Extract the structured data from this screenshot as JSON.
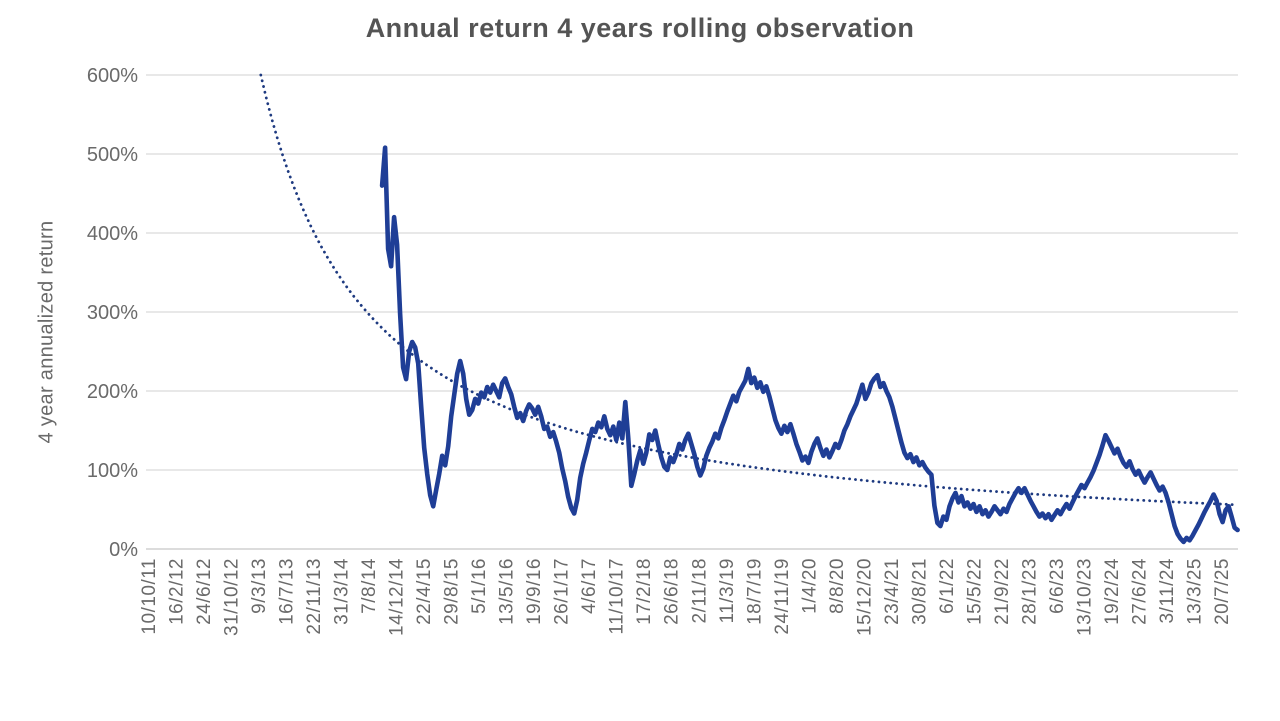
{
  "page": {
    "background": "#ffffff"
  },
  "chart_data": {
    "type": "line",
    "title": "Annual return 4 years rolling observation",
    "ylabel": "4 year annualized return",
    "xlabel": "",
    "grid": true,
    "legend_position": "none",
    "y_range_pct": [
      0,
      600
    ],
    "y_ticks": [
      "0%",
      "100%",
      "200%",
      "300%",
      "400%",
      "500%",
      "600%"
    ],
    "x_tick_labels": [
      "10/10/11",
      "16/2/12",
      "24/6/12",
      "31/10/12",
      "9/3/13",
      "16/7/13",
      "22/11/13",
      "31/3/14",
      "7/8/14",
      "14/12/14",
      "22/4/15",
      "29/8/15",
      "5/1/16",
      "13/5/16",
      "19/9/16",
      "26/1/17",
      "4/6/17",
      "11/10/17",
      "17/2/18",
      "26/6/18",
      "2/11/18",
      "11/3/19",
      "18/7/19",
      "24/11/19",
      "1/4/20",
      "8/8/20",
      "15/12/20",
      "23/4/21",
      "30/8/21",
      "6/1/22",
      "15/5/22",
      "21/9/22",
      "28/1/23",
      "6/6/23",
      "13/10/23",
      "19/2/24",
      "27/6/24",
      "3/11/24",
      "13/3/25",
      "20/7/25"
    ],
    "colors": {
      "series": "#1F3E96",
      "trendline": "#1E3A80",
      "gridline": "#D9D9D9",
      "axis_line": "#C6C6C6",
      "title_text": "#545454",
      "tick_text": "#6a6a6a"
    },
    "series": [
      {
        "name": "4 year annualized return (rolling observation)",
        "style": "solid",
        "color": "#1F3E96",
        "x_start_tick": 8.51,
        "x_step_tick": 0.1091,
        "values_pct": [
          460,
          508,
          380,
          358,
          420,
          385,
          298,
          230,
          215,
          250,
          262,
          255,
          235,
          180,
          128,
          95,
          68,
          54,
          75,
          95,
          118,
          106,
          130,
          168,
          195,
          222,
          238,
          222,
          190,
          170,
          176,
          190,
          184,
          198,
          192,
          205,
          198,
          208,
          200,
          192,
          210,
          216,
          205,
          196,
          180,
          166,
          172,
          162,
          175,
          183,
          178,
          170,
          180,
          168,
          152,
          155,
          142,
          148,
          136,
          122,
          102,
          86,
          66,
          52,
          45,
          62,
          90,
          108,
          122,
          138,
          152,
          148,
          160,
          154,
          168,
          152,
          144,
          155,
          138,
          160,
          140,
          186,
          140,
          80,
          95,
          112,
          125,
          108,
          122,
          145,
          138,
          150,
          132,
          116,
          104,
          100,
          116,
          110,
          120,
          133,
          126,
          138,
          146,
          133,
          120,
          104,
          93,
          102,
          118,
          128,
          136,
          146,
          140,
          153,
          163,
          174,
          184,
          194,
          187,
          199,
          206,
          213,
          228,
          210,
          217,
          204,
          211,
          199,
          206,
          193,
          178,
          163,
          153,
          146,
          156,
          148,
          158,
          146,
          133,
          123,
          112,
          117,
          109,
          123,
          133,
          140,
          128,
          118,
          126,
          116,
          124,
          133,
          128,
          138,
          150,
          158,
          168,
          176,
          184,
          196,
          208,
          190,
          198,
          210,
          216,
          220,
          205,
          210,
          200,
          192,
          180,
          165,
          150,
          135,
          122,
          115,
          120,
          110,
          116,
          106,
          110,
          103,
          98,
          94,
          55,
          33,
          29,
          41,
          37,
          54,
          64,
          71,
          59,
          67,
          54,
          59,
          51,
          57,
          47,
          54,
          44,
          49,
          41,
          47,
          54,
          49,
          44,
          51,
          47,
          57,
          64,
          71,
          77,
          71,
          77,
          69,
          61,
          54,
          47,
          41,
          45,
          39,
          44,
          37,
          43,
          49,
          44,
          51,
          57,
          51,
          59,
          67,
          74,
          81,
          77,
          84,
          91,
          99,
          109,
          119,
          131,
          144,
          137,
          129,
          121,
          127,
          117,
          109,
          104,
          111,
          101,
          94,
          99,
          91,
          84,
          91,
          97,
          89,
          81,
          74,
          79,
          71,
          59,
          44,
          29,
          19,
          13,
          9,
          14,
          11,
          17,
          24,
          31,
          39,
          47,
          54,
          61,
          69,
          61,
          44,
          34,
          49,
          54,
          41,
          27,
          24
        ]
      },
      {
        "name": "power trendline",
        "style": "dotted",
        "color": "#1E3A80",
        "model": "power",
        "start_tick": 4.1,
        "end_tick": 39.6,
        "value_at_start_pct": 600,
        "exponent": -1.046
      }
    ]
  }
}
